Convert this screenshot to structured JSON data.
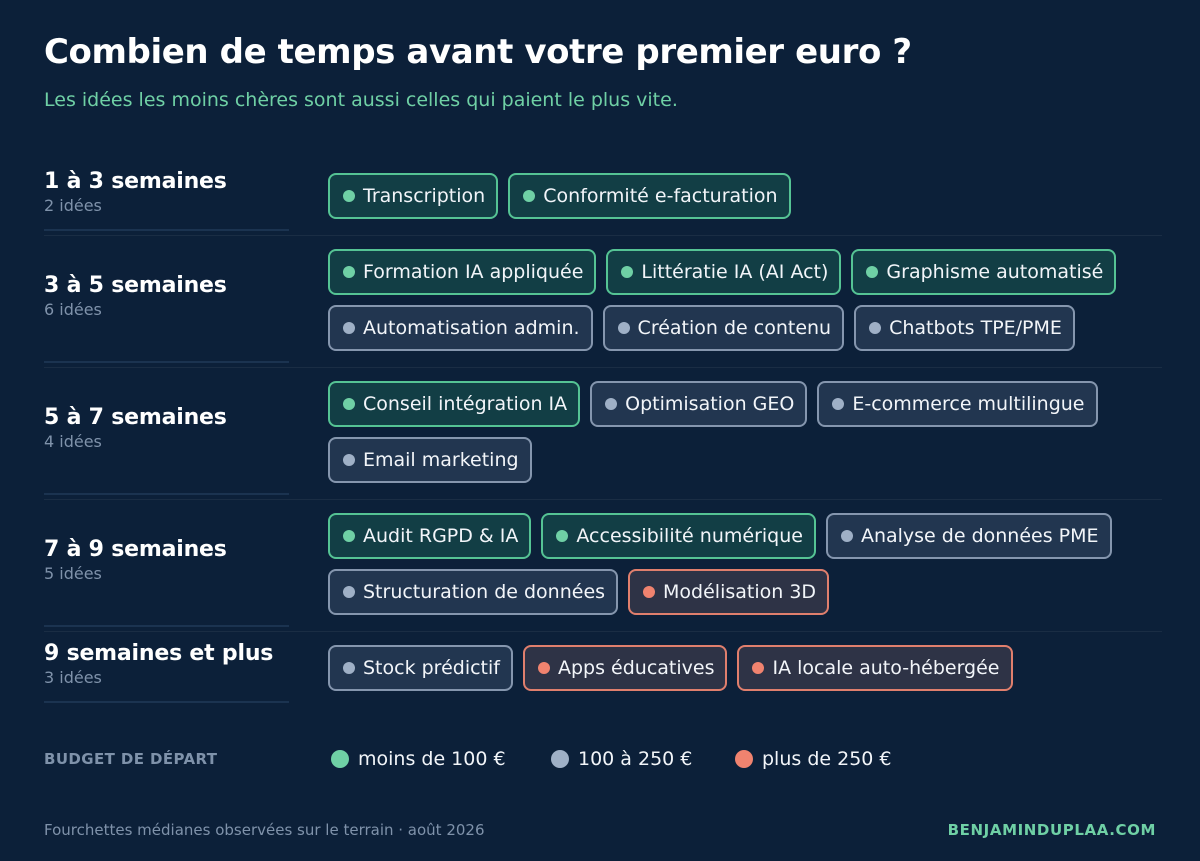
{
  "title": "Combien de temps avant votre premier euro ?",
  "subtitle": "Les idées les moins chères sont aussi celles qui paient le plus vite.",
  "colors": {
    "green": "#6fd0a5",
    "grey": "#9fb0c6",
    "orange": "#f0836f",
    "background": "#0c2039"
  },
  "rows": [
    {
      "range": "1 à 3 semaines",
      "count": "2 idées",
      "chips": [
        [
          {
            "label": "Transcription",
            "budget": "green"
          },
          {
            "label": "Conformité e-facturation",
            "budget": "green"
          }
        ]
      ]
    },
    {
      "range": "3 à 5 semaines",
      "count": "6 idées",
      "chips": [
        [
          {
            "label": "Formation IA appliquée",
            "budget": "green"
          },
          {
            "label": "Littératie IA (AI Act)",
            "budget": "green"
          },
          {
            "label": "Graphisme automatisé",
            "budget": "green"
          }
        ],
        [
          {
            "label": "Automatisation admin.",
            "budget": "grey"
          },
          {
            "label": "Création de contenu",
            "budget": "grey"
          },
          {
            "label": "Chatbots TPE/PME",
            "budget": "grey"
          }
        ]
      ]
    },
    {
      "range": "5 à 7 semaines",
      "count": "4 idées",
      "chips": [
        [
          {
            "label": "Conseil intégration IA",
            "budget": "green"
          },
          {
            "label": "Optimisation GEO",
            "budget": "grey"
          },
          {
            "label": "E-commerce multilingue",
            "budget": "grey"
          }
        ],
        [
          {
            "label": "Email marketing",
            "budget": "grey"
          }
        ]
      ]
    },
    {
      "range": "7 à 9 semaines",
      "count": "5 idées",
      "chips": [
        [
          {
            "label": "Audit RGPD & IA",
            "budget": "green"
          },
          {
            "label": "Accessibilité numérique",
            "budget": "green"
          },
          {
            "label": "Analyse de données PME",
            "budget": "grey"
          }
        ],
        [
          {
            "label": "Structuration de données",
            "budget": "grey"
          },
          {
            "label": "Modélisation 3D",
            "budget": "orange"
          }
        ]
      ]
    },
    {
      "range": "9 semaines et plus",
      "count": "3 idées",
      "chips": [
        [
          {
            "label": "Stock prédictif",
            "budget": "grey"
          },
          {
            "label": "Apps éducatives",
            "budget": "orange"
          },
          {
            "label": "IA locale auto-hébergée",
            "budget": "orange"
          }
        ]
      ]
    }
  ],
  "legend": {
    "title": "BUDGET DE DÉPART",
    "items": [
      {
        "label": "moins de 100 €",
        "budget": "green"
      },
      {
        "label": "100 à 250 €",
        "budget": "grey"
      },
      {
        "label": "plus de 250 €",
        "budget": "orange"
      }
    ]
  },
  "footer": {
    "note": "Fourchettes médianes observées sur le terrain · août 2026",
    "brand": "BENJAMINDUPLAA.COM"
  }
}
